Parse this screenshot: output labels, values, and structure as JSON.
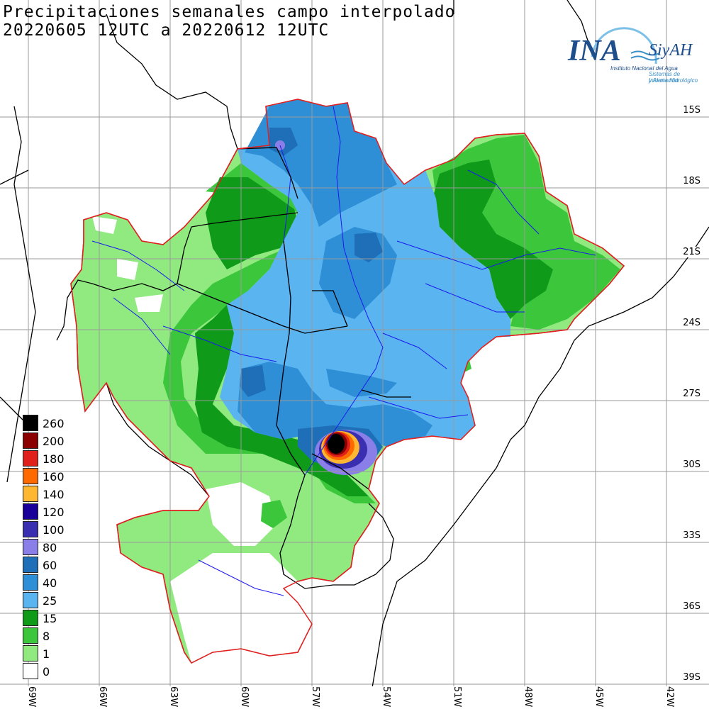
{
  "title": {
    "line1": "Precipitaciones semanales campo interpolado",
    "line2": "20220605 12UTC a 20220612 12UTC"
  },
  "logo": {
    "ina": "INA",
    "siyah": "SiyAH",
    "sub1": "Instituto Nacional del Agua",
    "sub2": "Sistemas de Información",
    "sub3": "y Alerta Hidrológico"
  },
  "lat_labels": [
    "15S",
    "18S",
    "21S",
    "24S",
    "27S",
    "30S",
    "33S",
    "36S",
    "39S"
  ],
  "lon_labels": [
    "69W",
    "66W",
    "63W",
    "60W",
    "57W",
    "54W",
    "51W",
    "48W",
    "45W",
    "42W"
  ],
  "legend": [
    {
      "label": "260",
      "color": "#000000"
    },
    {
      "label": "200",
      "color": "#8b0000"
    },
    {
      "label": "180",
      "color": "#e0201a"
    },
    {
      "label": "160",
      "color": "#ff6a00"
    },
    {
      "label": "140",
      "color": "#ffb732"
    },
    {
      "label": "120",
      "color": "#1a0099"
    },
    {
      "label": "100",
      "color": "#3a2fb0"
    },
    {
      "label": "80",
      "color": "#8a7fe8"
    },
    {
      "label": "60",
      "color": "#1e6fb8"
    },
    {
      "label": "40",
      "color": "#2f8fd6"
    },
    {
      "label": "25",
      "color": "#5ab4f0"
    },
    {
      "label": "15",
      "color": "#109a1a"
    },
    {
      "label": "8",
      "color": "#3cc63c"
    },
    {
      "label": "1",
      "color": "#90ea80"
    },
    {
      "label": "0",
      "color": "#ffffff"
    }
  ]
}
